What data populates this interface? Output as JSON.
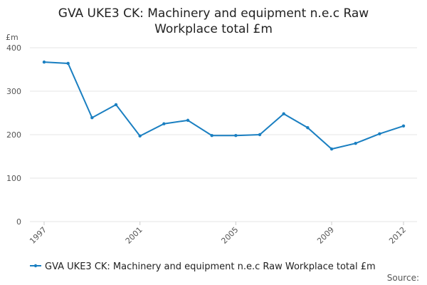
{
  "chart_data": {
    "type": "line",
    "title": "GVA UKE3 CK: Machinery and equipment n.e.c Raw Workplace total £m",
    "y_label": "£m",
    "source": "Source:",
    "x": [
      1997,
      1998,
      1999,
      2000,
      2001,
      2002,
      2003,
      2004,
      2005,
      2006,
      2007,
      2008,
      2009,
      2010,
      2011,
      2012
    ],
    "xlim": [
      1997,
      2012
    ],
    "xticks": [
      1997,
      2001,
      2005,
      2009,
      2012
    ],
    "ylim": [
      0,
      400
    ],
    "yticks": [
      0,
      100,
      200,
      300,
      400
    ],
    "grid": true,
    "series": [
      {
        "name": "GVA UKE3 CK: Machinery and equipment n.e.c Raw Workplace total £m",
        "color": "#1a7fc1",
        "values": [
          367,
          364,
          239,
          269,
          197,
          225,
          233,
          198,
          198,
          200,
          248,
          216,
          167,
          180,
          202,
          220
        ]
      }
    ]
  }
}
